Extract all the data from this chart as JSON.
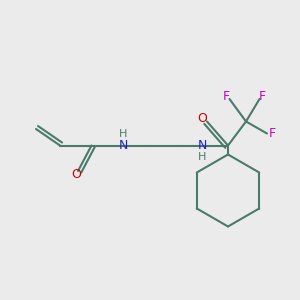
{
  "bg_color": "#ebebeb",
  "bond_color": "#4a7a6a",
  "N_color": "#2020cc",
  "O_color": "#cc0000",
  "F_color": "#cc00cc",
  "H_color": "#4a7a6a",
  "line_width": 1.5,
  "figsize": [
    3.0,
    3.0
  ],
  "dpi": 100,
  "xlim": [
    0,
    10
  ],
  "ylim": [
    0,
    10
  ]
}
